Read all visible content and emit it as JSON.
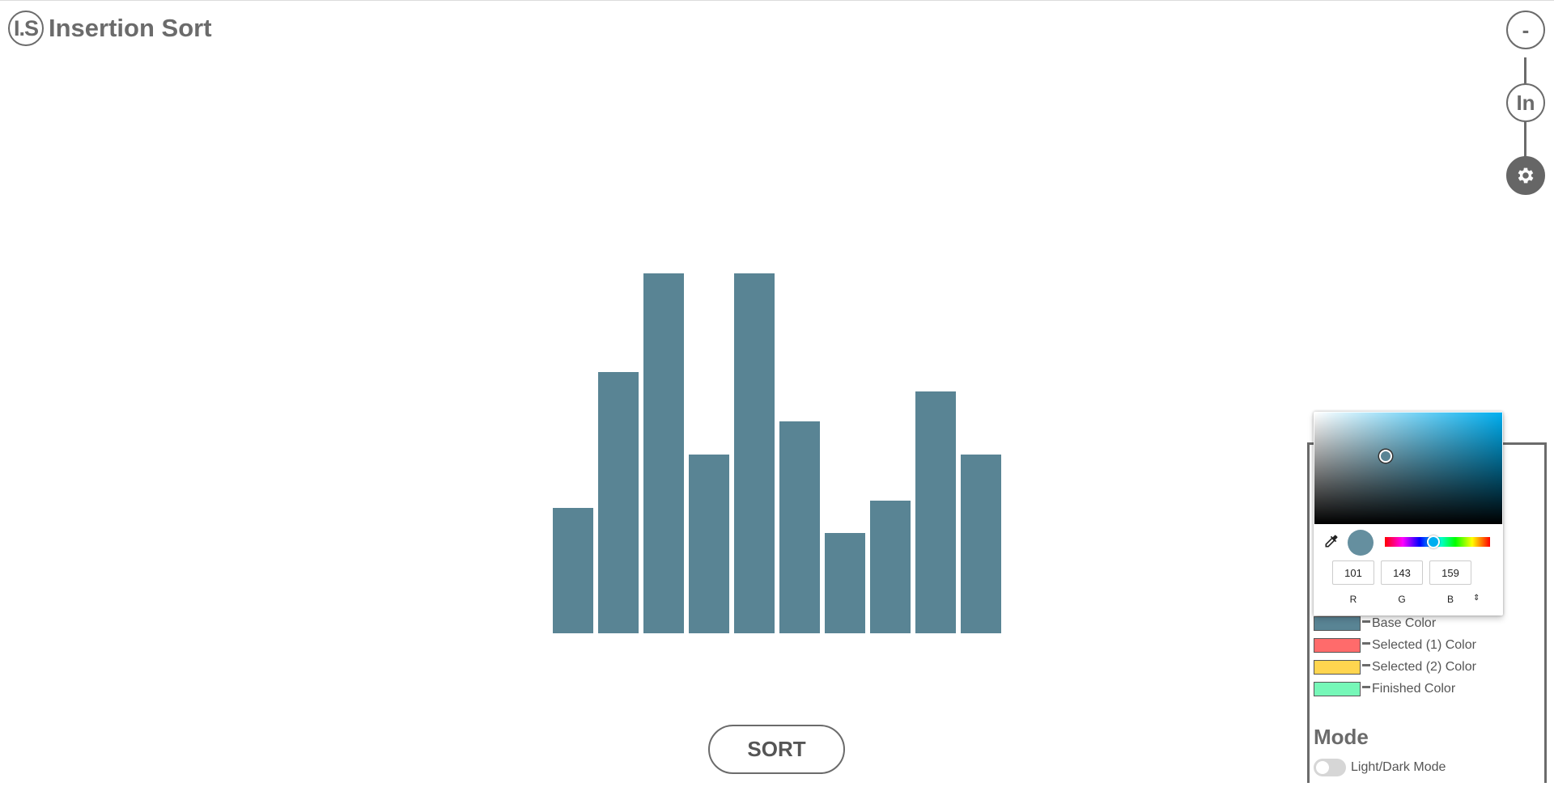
{
  "app": {
    "logo_text": "I.S",
    "title": "Insertion Sort"
  },
  "nav": {
    "minimize_label": "-",
    "linkedin_label": "In",
    "settings_icon": "gear-icon"
  },
  "chart_data": {
    "type": "bar",
    "values": [
      155,
      323,
      445,
      221,
      445,
      262,
      124,
      164,
      299,
      221
    ],
    "bar_color": "#598494"
  },
  "sort_button": {
    "label": "SORT"
  },
  "settings": {
    "colors": [
      {
        "label": "Base Color",
        "hex": "#598494"
      },
      {
        "label": "Selected (1) Color",
        "hex": "#ff6b6b"
      },
      {
        "label": "Selected (2) Color",
        "hex": "#ffd54f"
      },
      {
        "label": "Finished Color",
        "hex": "#76f7b8"
      }
    ],
    "mode": {
      "title": "Mode",
      "toggle_label": "Light/Dark Mode",
      "dark_enabled": false
    }
  },
  "color_picker": {
    "r": "101",
    "g": "143",
    "b": "159",
    "r_label": "R",
    "g_label": "G",
    "b_label": "B",
    "current_hex": "#658f9f",
    "hue_hex": "#00aeef"
  }
}
